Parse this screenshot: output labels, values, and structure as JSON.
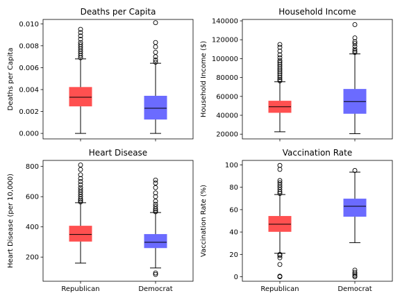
{
  "chart_data": [
    {
      "type": "box",
      "title": "Deaths per Capita",
      "ylabel": "Deaths per Capita",
      "ylim": [
        -0.0005,
        0.0104
      ],
      "yticks": [
        0.0,
        0.002,
        0.004,
        0.006,
        0.008,
        0.01
      ],
      "ytick_labels": [
        "0.000",
        "0.002",
        "0.004",
        "0.006",
        "0.008",
        "0.010"
      ],
      "categories": [
        "Republican",
        "Democrat"
      ],
      "show_xtick_labels": false,
      "series": [
        {
          "name": "Republican",
          "color": "#ff5050",
          "whisker_low": 0.0,
          "q1": 0.0025,
          "median": 0.0033,
          "q3": 0.0042,
          "whisker_high": 0.0068,
          "outliers": [
            0.0069,
            0.0071,
            0.0073,
            0.0075,
            0.0077,
            0.0079,
            0.0081,
            0.0083,
            0.0086,
            0.0089,
            0.0092,
            0.0095
          ]
        },
        {
          "name": "Democrat",
          "color": "#6b6bff",
          "whisker_low": 0.0,
          "q1": 0.0013,
          "median": 0.0023,
          "q3": 0.0034,
          "whisker_high": 0.0064,
          "outliers": [
            0.0065,
            0.0067,
            0.007,
            0.0074,
            0.0079,
            0.0083,
            0.0101
          ]
        }
      ]
    },
    {
      "type": "box",
      "title": "Household Income",
      "ylabel": "Household Income ($)",
      "ylim": [
        15000,
        141500
      ],
      "yticks": [
        20000,
        40000,
        60000,
        80000,
        100000,
        120000,
        140000
      ],
      "ytick_labels": [
        "20000",
        "40000",
        "60000",
        "80000",
        "100000",
        "120000",
        "140000"
      ],
      "categories": [
        "Republican",
        "Democrat"
      ],
      "show_xtick_labels": false,
      "series": [
        {
          "name": "Republican",
          "color": "#ff5050",
          "whisker_low": 22500,
          "q1": 43000,
          "median": 49000,
          "q3": 55000,
          "whisker_high": 75500,
          "outliers": [
            76500,
            78000,
            80000,
            82000,
            84000,
            86000,
            88000,
            90000,
            92000,
            94000,
            96000,
            98000,
            101000,
            104000,
            108000,
            112000,
            115000
          ]
        },
        {
          "name": "Democrat",
          "color": "#6b6bff",
          "whisker_low": 20500,
          "q1": 42000,
          "median": 54500,
          "q3": 67500,
          "whisker_high": 105000,
          "outliers": [
            106500,
            108000,
            110000,
            113000,
            116000,
            118000,
            122000,
            136000
          ]
        }
      ]
    },
    {
      "type": "box",
      "title": "Heart Disease",
      "ylabel": "Heart Disease (per 10,000)",
      "ylim": [
        40,
        840
      ],
      "yticks": [
        200,
        400,
        600,
        800
      ],
      "ytick_labels": [
        "200",
        "400",
        "600",
        "800"
      ],
      "categories": [
        "Republican",
        "Democrat"
      ],
      "show_xtick_labels": true,
      "series": [
        {
          "name": "Republican",
          "color": "#ff5050",
          "whisker_low": 160,
          "q1": 305,
          "median": 350,
          "q3": 405,
          "whisker_high": 560,
          "outliers": [
            565,
            575,
            585,
            600,
            615,
            630,
            645,
            660,
            680,
            700,
            720,
            745,
            780,
            810
          ]
        },
        {
          "name": "Democrat",
          "color": "#6b6bff",
          "whisker_low": 128,
          "q1": 262,
          "median": 298,
          "q3": 350,
          "whisker_high": 495,
          "outliers": [
            500,
            510,
            520,
            535,
            550,
            570,
            600,
            625,
            660,
            690,
            710,
            95,
            85
          ]
        }
      ]
    },
    {
      "type": "box",
      "title": "Vaccination Rate",
      "ylabel": "Vaccination Rate (%)",
      "ylim": [
        -4,
        104
      ],
      "yticks": [
        0,
        20,
        40,
        60,
        80,
        100
      ],
      "ytick_labels": [
        "0",
        "20",
        "40",
        "60",
        "80",
        "100"
      ],
      "categories": [
        "Republican",
        "Democrat"
      ],
      "show_xtick_labels": true,
      "series": [
        {
          "name": "Republican",
          "color": "#ff5050",
          "whisker_low": 21,
          "q1": 40.5,
          "median": 47,
          "q3": 54,
          "whisker_high": 73.5,
          "outliers": [
            74.5,
            76,
            78,
            80,
            82,
            84,
            86,
            96,
            99.5,
            20,
            19,
            17,
            11,
            0,
            0.5
          ]
        },
        {
          "name": "Democrat",
          "color": "#6b6bff",
          "whisker_low": 30.5,
          "q1": 54,
          "median": 63,
          "q3": 69.5,
          "whisker_high": 93.5,
          "outliers": [
            95,
            6,
            4,
            2.5,
            1,
            0
          ]
        }
      ]
    }
  ]
}
